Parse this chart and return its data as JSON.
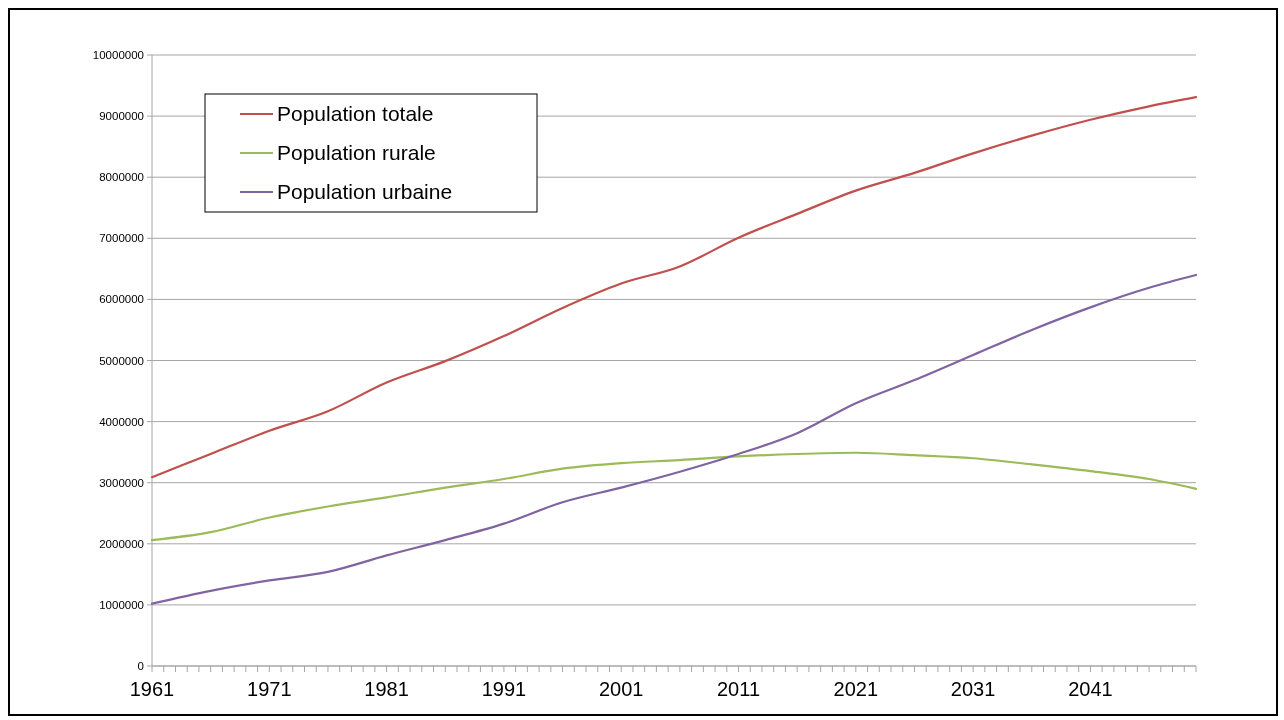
{
  "chart_data": {
    "type": "line",
    "x": [
      1961,
      1966,
      1971,
      1976,
      1981,
      1986,
      1991,
      1996,
      2001,
      2006,
      2011,
      2016,
      2021,
      2026,
      2031,
      2036,
      2041,
      2046,
      2050
    ],
    "series": [
      {
        "name": "Population totale",
        "color": "#c0504d",
        "values": [
          3090000,
          3470000,
          3850000,
          4170000,
          4640000,
          4990000,
          5400000,
          5860000,
          6260000,
          6540000,
          7010000,
          7400000,
          7780000,
          8070000,
          8390000,
          8680000,
          8940000,
          9160000,
          9310000
        ]
      },
      {
        "name": "Population rurale",
        "color": "#9bbb59",
        "values": [
          2060000,
          2190000,
          2430000,
          2610000,
          2760000,
          2920000,
          3060000,
          3230000,
          3320000,
          3370000,
          3430000,
          3470000,
          3490000,
          3450000,
          3400000,
          3300000,
          3190000,
          3060000,
          2900000
        ]
      },
      {
        "name": "Population urbaine",
        "color": "#8064a2",
        "values": [
          1020000,
          1230000,
          1400000,
          1540000,
          1810000,
          2060000,
          2330000,
          2680000,
          2920000,
          3180000,
          3470000,
          3810000,
          4300000,
          4680000,
          5090000,
          5500000,
          5870000,
          6190000,
          6400000
        ]
      }
    ],
    "xlim": [
      1961,
      2050
    ],
    "xticks": [
      1961,
      {
        "value": 1962,
        "label": null
      },
      {
        "value": 1963,
        "label": null
      },
      {
        "value": 1964,
        "label": null
      },
      {
        "value": 1965,
        "label": null
      },
      {
        "value": 1966,
        "label": null
      },
      {
        "value": 1967,
        "label": null
      },
      {
        "value": 1968,
        "label": null
      },
      {
        "value": 1969,
        "label": null
      },
      {
        "value": 1970,
        "label": null
      },
      1971,
      {
        "value": 1972,
        "label": null
      },
      {
        "value": 1973,
        "label": null
      },
      {
        "value": 1974,
        "label": null
      },
      {
        "value": 1975,
        "label": null
      },
      {
        "value": 1976,
        "label": null
      },
      {
        "value": 1977,
        "label": null
      },
      {
        "value": 1978,
        "label": null
      },
      {
        "value": 1979,
        "label": null
      },
      {
        "value": 1980,
        "label": null
      },
      1981,
      {
        "value": 1982,
        "label": null
      },
      {
        "value": 1983,
        "label": null
      },
      {
        "value": 1984,
        "label": null
      },
      {
        "value": 1985,
        "label": null
      },
      {
        "value": 1986,
        "label": null
      },
      {
        "value": 1987,
        "label": null
      },
      {
        "value": 1988,
        "label": null
      },
      {
        "value": 1989,
        "label": null
      },
      {
        "value": 1990,
        "label": null
      },
      1991,
      {
        "value": 1992,
        "label": null
      },
      {
        "value": 1993,
        "label": null
      },
      {
        "value": 1994,
        "label": null
      },
      {
        "value": 1995,
        "label": null
      },
      {
        "value": 1996,
        "label": null
      },
      {
        "value": 1997,
        "label": null
      },
      {
        "value": 1998,
        "label": null
      },
      {
        "value": 1999,
        "label": null
      },
      {
        "value": 2000,
        "label": null
      },
      2001,
      {
        "value": 2002,
        "label": null
      },
      {
        "value": 2003,
        "label": null
      },
      {
        "value": 2004,
        "label": null
      },
      {
        "value": 2005,
        "label": null
      },
      {
        "value": 2006,
        "label": null
      },
      {
        "value": 2007,
        "label": null
      },
      {
        "value": 2008,
        "label": null
      },
      {
        "value": 2009,
        "label": null
      },
      {
        "value": 2010,
        "label": null
      },
      2011,
      {
        "value": 2012,
        "label": null
      },
      {
        "value": 2013,
        "label": null
      },
      {
        "value": 2014,
        "label": null
      },
      {
        "value": 2015,
        "label": null
      },
      {
        "value": 2016,
        "label": null
      },
      {
        "value": 2017,
        "label": null
      },
      {
        "value": 2018,
        "label": null
      },
      {
        "value": 2019,
        "label": null
      },
      {
        "value": 2020,
        "label": null
      },
      2021,
      {
        "value": 2022,
        "label": null
      },
      {
        "value": 2023,
        "label": null
      },
      {
        "value": 2024,
        "label": null
      },
      {
        "value": 2025,
        "label": null
      },
      {
        "value": 2026,
        "label": null
      },
      {
        "value": 2027,
        "label": null
      },
      {
        "value": 2028,
        "label": null
      },
      {
        "value": 2029,
        "label": null
      },
      {
        "value": 2030,
        "label": null
      },
      2031,
      {
        "value": 2032,
        "label": null
      },
      {
        "value": 2033,
        "label": null
      },
      {
        "value": 2034,
        "label": null
      },
      {
        "value": 2035,
        "label": null
      },
      {
        "value": 2036,
        "label": null
      },
      {
        "value": 2037,
        "label": null
      },
      {
        "value": 2038,
        "label": null
      },
      {
        "value": 2039,
        "label": null
      },
      {
        "value": 2040,
        "label": null
      },
      2041,
      {
        "value": 2042,
        "label": null
      },
      {
        "value": 2043,
        "label": null
      },
      {
        "value": 2044,
        "label": null
      },
      {
        "value": 2045,
        "label": null
      },
      {
        "value": 2046,
        "label": null
      },
      {
        "value": 2047,
        "label": null
      },
      {
        "value": 2048,
        "label": null
      },
      {
        "value": 2049,
        "label": null
      },
      {
        "value": 2050,
        "label": null
      }
    ],
    "ylim": [
      0,
      10000000
    ],
    "yticks": [
      0,
      1000000,
      2000000,
      3000000,
      4000000,
      5000000,
      6000000,
      7000000,
      8000000,
      9000000,
      10000000
    ],
    "grid": "y",
    "legend": "top left",
    "marker": "none",
    "line_style": "solid"
  }
}
